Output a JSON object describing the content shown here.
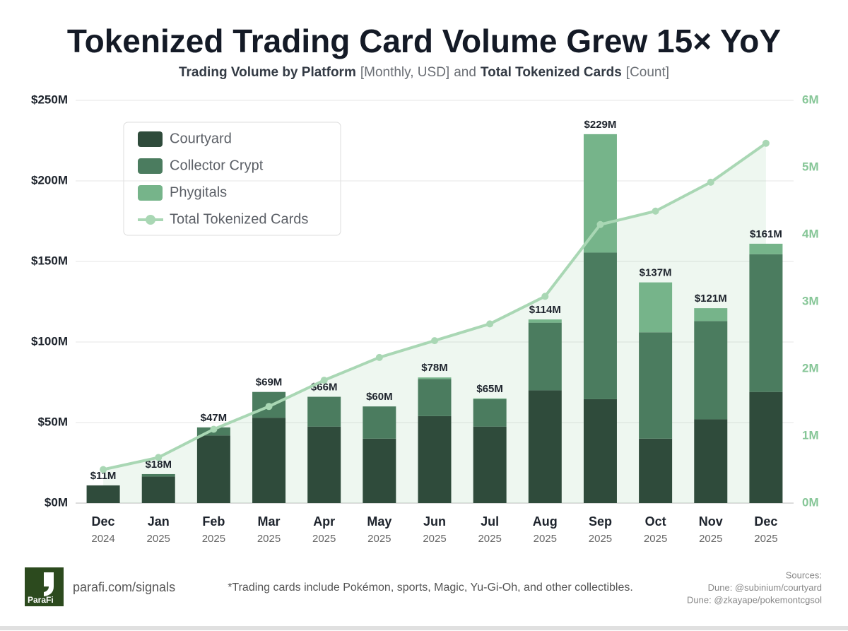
{
  "chart_data": {
    "type": "bar",
    "stacked": true,
    "title": "Tokenized Trading Card Volume Grew 15× YoY",
    "subtitle": [
      {
        "text": "Trading Volume by Platform",
        "bold": true
      },
      {
        "text": "[Monthly, USD]",
        "bold": false
      },
      {
        "text": "and",
        "bold": false
      },
      {
        "text": "Total Tokenized Cards",
        "bold": true
      },
      {
        "text": "[Count]",
        "bold": false
      }
    ],
    "categories": [
      "Dec",
      "Jan",
      "Feb",
      "Mar",
      "Apr",
      "May",
      "Jun",
      "Jul",
      "Aug",
      "Sep",
      "Oct",
      "Nov",
      "Dec"
    ],
    "category_years": [
      "2024",
      "2025",
      "2025",
      "2025",
      "2025",
      "2025",
      "2025",
      "2025",
      "2025",
      "2025",
      "2025",
      "2025",
      "2025"
    ],
    "series": [
      {
        "name": "Courtyard",
        "color": "#2f4b3b",
        "values": [
          11,
          16.5,
          42,
          53,
          47.5,
          40,
          54,
          47.5,
          70,
          64.5,
          40,
          52,
          69
        ]
      },
      {
        "name": "Collector Crypt",
        "color": "#4b7c5f",
        "values": [
          0,
          1.5,
          5,
          16,
          18.5,
          20,
          23,
          17,
          42,
          91,
          66,
          61,
          85.5
        ]
      },
      {
        "name": "Phygitals",
        "color": "#76b48a",
        "values": [
          0,
          0,
          0,
          0,
          0,
          0,
          1,
          0.5,
          2,
          73.5,
          31,
          8,
          6.5
        ]
      },
      {
        "name": "Total Tokenized Cards",
        "color": "#a9d7b4",
        "type": "line",
        "axis": "y2",
        "values": [
          0.5,
          0.68,
          1.1,
          1.44,
          1.83,
          2.17,
          2.42,
          2.67,
          3.08,
          4.15,
          4.35,
          4.78,
          5.36
        ]
      }
    ],
    "totals": {
      "values": [
        11,
        18,
        47,
        69,
        66,
        60,
        78,
        65,
        114,
        229,
        137,
        121,
        161
      ],
      "value_labels": [
        "$11M",
        "$18M",
        "$47M",
        "$69M",
        "$66M",
        "$60M",
        "$78M",
        "$65M",
        "$114M",
        "$229M",
        "$137M",
        "$121M",
        "$161M"
      ]
    },
    "ylim": [
      0,
      250
    ],
    "yticks": [
      {
        "value": 0,
        "label": "$0M"
      },
      {
        "value": 50,
        "label": "$50M"
      },
      {
        "value": 100,
        "label": "$100M"
      },
      {
        "value": 150,
        "label": "$150M"
      },
      {
        "value": 200,
        "label": "$200M"
      },
      {
        "value": 250,
        "label": "$250M"
      }
    ],
    "y2lim": [
      0,
      6
    ],
    "y2ticks": [
      {
        "value": 0,
        "label": "0M"
      },
      {
        "value": 1,
        "label": "1M"
      },
      {
        "value": 2,
        "label": "2M"
      },
      {
        "value": 3,
        "label": "3M"
      },
      {
        "value": 4,
        "label": "4M"
      },
      {
        "value": 5,
        "label": "5M"
      },
      {
        "value": 6,
        "label": "6M"
      }
    ],
    "grid": true,
    "legend": "top-left",
    "footer": {
      "logo": "ParaFi",
      "link": "parafi.com/signals",
      "note": "*Trading cards include Pokémon, sports, Magic, Yu-Gi-Oh, and other collectibles.",
      "sources": [
        "Sources:",
        "Dune: @subinium/courtyard",
        "Dune: @zkayape/pokemontcgsol"
      ]
    }
  }
}
